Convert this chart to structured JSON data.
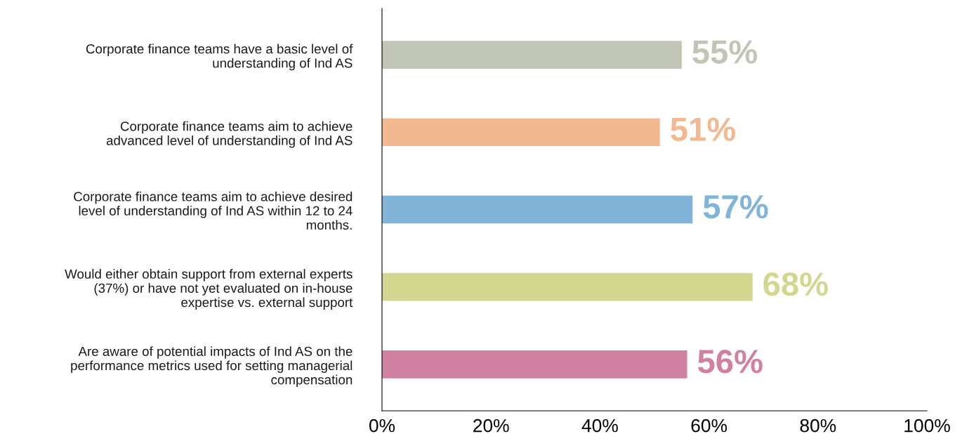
{
  "chart_data": {
    "type": "bar",
    "orientation": "horizontal",
    "categories": [
      "Corporate finance teams have a basic level of\nunderstanding of Ind AS",
      "Corporate finance teams aim to achieve\nadvanced level of understanding of Ind AS",
      "Corporate finance teams aim to achieve desired\nlevel of understanding of Ind AS within 12 to 24\nmonths.",
      "Would either obtain support from external experts\n(37%) or have not yet evaluated on in-house\nexpertise vs. external support",
      "Are aware of potential impacts of Ind AS on the\nperformance metrics used for setting managerial\ncompensation"
    ],
    "values": [
      55,
      51,
      57,
      68,
      56
    ],
    "value_labels": [
      "55%",
      "51%",
      "57%",
      "68%",
      "56%"
    ],
    "colors": [
      "#c0c5b5",
      "#f2b990",
      "#80b5d9",
      "#d3d68e",
      "#d081a2"
    ],
    "xlim": [
      0,
      100
    ],
    "xticks": [
      {
        "value": 0,
        "label": "0%"
      },
      {
        "value": 20,
        "label": "20%"
      },
      {
        "value": 40,
        "label": "40%"
      },
      {
        "value": 60,
        "label": "60%"
      },
      {
        "value": 80,
        "label": "80%"
      },
      {
        "value": 100,
        "label": "100%"
      }
    ],
    "grid": false,
    "legend": false
  }
}
